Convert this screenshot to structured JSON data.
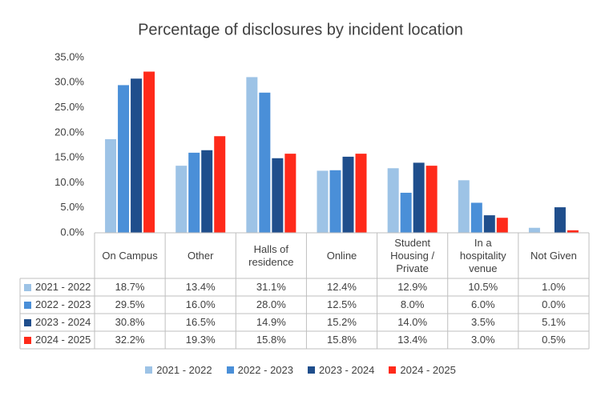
{
  "chart_data": {
    "type": "bar",
    "title": "Percentage of disclosures by incident location",
    "categories": [
      "On Campus",
      "Other",
      "Halls of residence",
      "Online",
      "Student Housing / Private",
      "In a hospitality venue",
      "Not Given"
    ],
    "series": [
      {
        "name": "2021 - 2022",
        "color": "#9dc3e6",
        "values": [
          18.7,
          13.4,
          31.1,
          12.4,
          12.9,
          10.5,
          1.0
        ],
        "value_labels": [
          "18.7%",
          "13.4%",
          "31.1%",
          "12.4%",
          "12.9%",
          "10.5%",
          "1.0%"
        ]
      },
      {
        "name": "2022 - 2023",
        "color": "#4a8fd8",
        "values": [
          29.5,
          16.0,
          28.0,
          12.5,
          8.0,
          6.0,
          0.0
        ],
        "value_labels": [
          "29.5%",
          "16.0%",
          "28.0%",
          "12.5%",
          "8.0%",
          "6.0%",
          "0.0%"
        ]
      },
      {
        "name": "2023 - 2024",
        "color": "#1f4e8c",
        "values": [
          30.8,
          16.5,
          14.9,
          15.2,
          14.0,
          3.5,
          5.1
        ],
        "value_labels": [
          "30.8%",
          "16.5%",
          "14.9%",
          "15.2%",
          "14.0%",
          "3.5%",
          "5.1%"
        ]
      },
      {
        "name": "2024 - 2025",
        "color": "#ff2a1a",
        "values": [
          32.2,
          19.3,
          15.8,
          15.8,
          13.4,
          3.0,
          0.5
        ],
        "value_labels": [
          "32.2%",
          "19.3%",
          "15.8%",
          "15.8%",
          "13.4%",
          "3.0%",
          "0.5%"
        ]
      }
    ],
    "ylim": [
      0,
      35
    ],
    "yticks": [
      {
        "value": 0,
        "label": "0.0%"
      },
      {
        "value": 5,
        "label": "5.0%"
      },
      {
        "value": 10,
        "label": "10.0%"
      },
      {
        "value": 15,
        "label": "15.0%"
      },
      {
        "value": 20,
        "label": "20.0%"
      },
      {
        "value": 25,
        "label": "25.0%"
      },
      {
        "value": 30,
        "label": "30.0%"
      },
      {
        "value": 35,
        "label": "35.0%"
      }
    ],
    "grid": false
  }
}
